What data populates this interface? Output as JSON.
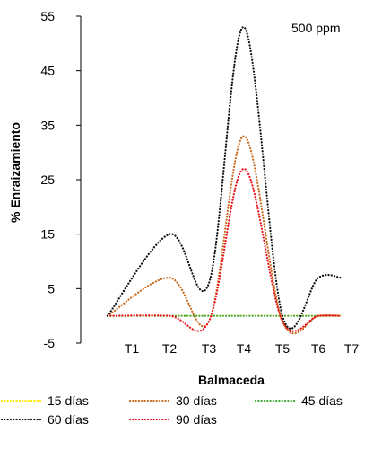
{
  "chart_data": {
    "type": "line",
    "title": "",
    "annotation": "500 ppm",
    "xlabel": "Balmaceda",
    "ylabel": "% Enraizamiento",
    "categories": [
      "T1",
      "T2",
      "T3",
      "T4",
      "T5",
      "T6",
      "T7"
    ],
    "y_ticks": [
      "55",
      "45",
      "35",
      "25",
      "15",
      "5",
      "-5"
    ],
    "ylim": [
      -5,
      55
    ],
    "grid": false,
    "legend_position": "bottom",
    "series": [
      {
        "name": "15 días",
        "color": "#ffe600",
        "values": [
          0,
          0,
          0,
          0,
          0,
          0,
          0
        ]
      },
      {
        "name": "30 días",
        "color": "#c96a1e",
        "values": [
          0,
          7,
          -1,
          33,
          -1,
          0,
          0
        ]
      },
      {
        "name": "45 días",
        "color": "#3fa535",
        "values": [
          0,
          0,
          0,
          0,
          0,
          0,
          0
        ]
      },
      {
        "name": "60 días",
        "color": "#111111",
        "values": [
          0,
          15,
          6,
          53,
          0,
          7,
          7
        ]
      },
      {
        "name": "90 días",
        "color": "#e8141b",
        "values": [
          0,
          0,
          -1,
          27,
          -1,
          0,
          0
        ]
      }
    ]
  }
}
